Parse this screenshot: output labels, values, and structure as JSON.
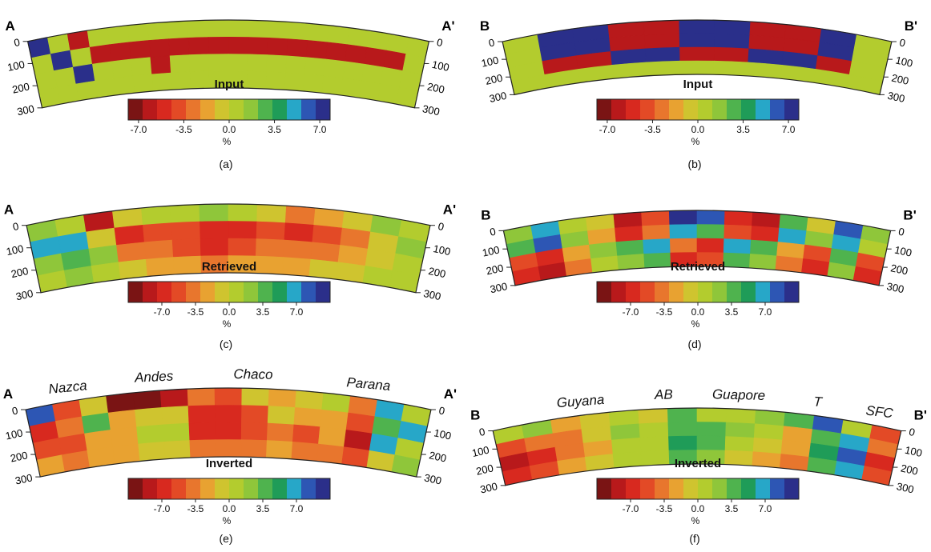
{
  "colorbar": {
    "colors": [
      "#7a1414",
      "#b8191b",
      "#d8291f",
      "#e34a26",
      "#e8762d",
      "#e8a231",
      "#cfc42f",
      "#b3cc2e",
      "#8fc63a",
      "#4fb34e",
      "#1f9c58",
      "#27a7c8",
      "#2d56b4",
      "#2b2f8a"
    ]
  },
  "panels": [
    {
      "id": "a",
      "sub_label": "(a)",
      "title": "Input",
      "end_left": "A",
      "end_right": "A'",
      "depth_ticks": [
        "0",
        "100",
        "200",
        "300"
      ],
      "colorbar_ticks": [
        "-7.0",
        "-3.5",
        "0.0",
        "3.5",
        "7.0"
      ],
      "unit": "%",
      "regions": [],
      "grid": [
        [
          "#2a2f8a",
          "#b3cc2e",
          "#b8191b",
          "#b3cc2e",
          "#b3cc2e",
          "#b3cc2e",
          "#b3cc2e",
          "#b3cc2e",
          "#b3cc2e",
          "#b3cc2e",
          "#b3cc2e",
          "#b3cc2e",
          "#b3cc2e",
          "#b3cc2e",
          "#b3cc2e",
          "#b3cc2e",
          "#b3cc2e",
          "#b3cc2e",
          "#b3cc2e",
          "#b3cc2e"
        ],
        [
          "#b3cc2e",
          "#2a2f8a",
          "#b3cc2e",
          "#b8191b",
          "#b8191b",
          "#b8191b",
          "#b8191b",
          "#b8191b",
          "#b8191b",
          "#b8191b",
          "#b8191b",
          "#b8191b",
          "#b8191b",
          "#b8191b",
          "#b8191b",
          "#b8191b",
          "#b8191b",
          "#b8191b",
          "#b8191b",
          "#b3cc2e"
        ],
        [
          "#b3cc2e",
          "#b3cc2e",
          "#2a2f8a",
          "#b3cc2e",
          "#b3cc2e",
          "#b3cc2e",
          "#b8191b",
          "#b3cc2e",
          "#b3cc2e",
          "#b3cc2e",
          "#b3cc2e",
          "#b3cc2e",
          "#b3cc2e",
          "#b3cc2e",
          "#b3cc2e",
          "#b3cc2e",
          "#b3cc2e",
          "#b3cc2e",
          "#b3cc2e",
          "#b3cc2e"
        ],
        [
          "#b3cc2e",
          "#b3cc2e",
          "#b3cc2e",
          "#b3cc2e",
          "#b3cc2e",
          "#b3cc2e",
          "#b3cc2e",
          "#b3cc2e",
          "#b3cc2e",
          "#b3cc2e",
          "#b3cc2e",
          "#b3cc2e",
          "#b3cc2e",
          "#b3cc2e",
          "#b3cc2e",
          "#b3cc2e",
          "#b3cc2e",
          "#b3cc2e",
          "#b3cc2e",
          "#b3cc2e"
        ]
      ]
    },
    {
      "id": "b",
      "sub_label": "(b)",
      "title": "Input",
      "end_left": "B",
      "end_right": "B'",
      "depth_ticks": [
        "0",
        "100",
        "200",
        "300"
      ],
      "colorbar_ticks": [
        "-7.0",
        "-3.5",
        "0.0",
        "3.5",
        "7.0"
      ],
      "unit": "%",
      "regions": [],
      "grid": [
        [
          "#b3cc2e",
          "#2a2f8a",
          "#2a2f8a",
          "#b8191b",
          "#b8191b",
          "#2a2f8a",
          "#2a2f8a",
          "#b8191b",
          "#b8191b",
          "#2a2f8a",
          "#b3cc2e"
        ],
        [
          "#b3cc2e",
          "#2a2f8a",
          "#2a2f8a",
          "#b8191b",
          "#b8191b",
          "#2a2f8a",
          "#2a2f8a",
          "#b8191b",
          "#b8191b",
          "#2a2f8a",
          "#b3cc2e"
        ],
        [
          "#b3cc2e",
          "#b8191b",
          "#b8191b",
          "#2a2f8a",
          "#2a2f8a",
          "#b8191b",
          "#b8191b",
          "#2a2f8a",
          "#2a2f8a",
          "#b8191b",
          "#b3cc2e"
        ],
        [
          "#b3cc2e",
          "#b3cc2e",
          "#b3cc2e",
          "#b3cc2e",
          "#b3cc2e",
          "#b3cc2e",
          "#b3cc2e",
          "#b3cc2e",
          "#b3cc2e",
          "#b3cc2e",
          "#b3cc2e"
        ]
      ]
    },
    {
      "id": "c",
      "sub_label": "(c)",
      "title": "Retrieved",
      "end_left": "A",
      "end_right": "A'",
      "depth_ticks": [
        "0",
        "100",
        "200",
        "300"
      ],
      "colorbar_ticks": [
        "-7.0",
        "-3.5",
        "0.0",
        "3.5",
        "7.0"
      ],
      "unit": "%",
      "regions": [],
      "grid": [
        [
          "#8fc63a",
          "#b3cc2e",
          "#b8191b",
          "#cfc42f",
          "#b3cc2e",
          "#b3cc2e",
          "#8fc63a",
          "#b3cc2e",
          "#cfc42f",
          "#e8762d",
          "#e8a231",
          "#cfc42f",
          "#8fc63a",
          "#b3cc2e"
        ],
        [
          "#27a7c8",
          "#27a7c8",
          "#cfc42f",
          "#d8291f",
          "#e34a26",
          "#e34a26",
          "#d8291f",
          "#d8291f",
          "#e34a26",
          "#d8291f",
          "#e34a26",
          "#e8762d",
          "#cfc42f",
          "#8fc63a"
        ],
        [
          "#8fc63a",
          "#4fb34e",
          "#8fc63a",
          "#e8762d",
          "#e8762d",
          "#e34a26",
          "#d8291f",
          "#e34a26",
          "#e8762d",
          "#e8762d",
          "#e8762d",
          "#e8a231",
          "#cfc42f",
          "#b3cc2e"
        ],
        [
          "#b3cc2e",
          "#8fc63a",
          "#b3cc2e",
          "#cfc42f",
          "#e8a231",
          "#e8a231",
          "#e8762d",
          "#e8a231",
          "#e8a231",
          "#e8a231",
          "#cfc42f",
          "#cfc42f",
          "#b3cc2e",
          "#b3cc2e"
        ]
      ]
    },
    {
      "id": "d",
      "sub_label": "(d)",
      "title": "Retrieved",
      "end_left": "B",
      "end_right": "B'",
      "depth_ticks": [
        "0",
        "100",
        "200",
        "300"
      ],
      "colorbar_ticks": [
        "-7.0",
        "-3.5",
        "0.0",
        "3.5",
        "7.0"
      ],
      "unit": "%",
      "regions": [],
      "grid": [
        [
          "#8fc63a",
          "#27a7c8",
          "#b3cc2e",
          "#cfc42f",
          "#b8191b",
          "#e34a26",
          "#2a2f8a",
          "#2d56b4",
          "#d8291f",
          "#b8191b",
          "#4fb34e",
          "#cfc42f",
          "#2d56b4",
          "#8fc63a"
        ],
        [
          "#4fb34e",
          "#2d56b4",
          "#8fc63a",
          "#e8a231",
          "#d8291f",
          "#e8762d",
          "#27a7c8",
          "#4fb34e",
          "#e34a26",
          "#d8291f",
          "#27a7c8",
          "#8fc63a",
          "#27a7c8",
          "#b3cc2e"
        ],
        [
          "#e34a26",
          "#d8291f",
          "#e8a231",
          "#8fc63a",
          "#4fb34e",
          "#27a7c8",
          "#e8762d",
          "#d8291f",
          "#27a7c8",
          "#4fb34e",
          "#e8a231",
          "#e34a26",
          "#4fb34e",
          "#e34a26"
        ],
        [
          "#d8291f",
          "#b8191b",
          "#e8762d",
          "#b3cc2e",
          "#8fc63a",
          "#4fb34e",
          "#d8291f",
          "#e34a26",
          "#4fb34e",
          "#8fc63a",
          "#e8762d",
          "#d8291f",
          "#8fc63a",
          "#d8291f"
        ]
      ]
    },
    {
      "id": "e",
      "sub_label": "(e)",
      "title": "Inverted",
      "end_left": "A",
      "end_right": "A'",
      "depth_ticks": [
        "0",
        "100",
        "200",
        "300"
      ],
      "colorbar_ticks": [
        "-7.0",
        "-3.5",
        "0.0",
        "3.5",
        "7.0"
      ],
      "unit": "%",
      "regions": [
        {
          "name": "Nazca",
          "t": 0.11
        },
        {
          "name": "Andes",
          "t": 0.32
        },
        {
          "name": "Chaco",
          "t": 0.56
        },
        {
          "name": "Parana",
          "t": 0.84
        }
      ],
      "grid": [
        [
          "#2d56b4",
          "#e34a26",
          "#cfc42f",
          "#7a1414",
          "#7a1414",
          "#b8191b",
          "#e8762d",
          "#e34a26",
          "#cfc42f",
          "#e8a231",
          "#cfc42f",
          "#b3cc2e",
          "#e8762d",
          "#27a7c8",
          "#b3cc2e"
        ],
        [
          "#d8291f",
          "#e8762d",
          "#4fb34e",
          "#e8a231",
          "#cfc42f",
          "#cfc42f",
          "#d8291f",
          "#d8291f",
          "#e34a26",
          "#cfc42f",
          "#e8a231",
          "#e8a231",
          "#e34a26",
          "#4fb34e",
          "#27a7c8"
        ],
        [
          "#e34a26",
          "#e34a26",
          "#e8a231",
          "#e8a231",
          "#b3cc2e",
          "#b3cc2e",
          "#d8291f",
          "#d8291f",
          "#e34a26",
          "#e8762d",
          "#e34a26",
          "#e8a231",
          "#b8191b",
          "#27a7c8",
          "#b3cc2e"
        ],
        [
          "#e8a231",
          "#e8762d",
          "#e8a231",
          "#e8a231",
          "#cfc42f",
          "#cfc42f",
          "#e8762d",
          "#e8762d",
          "#e8762d",
          "#e8a231",
          "#e8762d",
          "#e8762d",
          "#e34a26",
          "#cfc42f",
          "#8fc63a"
        ]
      ]
    },
    {
      "id": "f",
      "sub_label": "(f)",
      "title": "Inverted",
      "end_left": "B",
      "end_right": "B'",
      "depth_ticks": [
        "0",
        "100",
        "200",
        "300"
      ],
      "colorbar_ticks": [
        "-7.0",
        "-3.5",
        "0.0",
        "3.5",
        "7.0"
      ],
      "unit": "%",
      "regions": [
        {
          "name": "Guyana",
          "t": 0.22
        },
        {
          "name": "AB",
          "t": 0.42
        },
        {
          "name": "Guapore",
          "t": 0.6
        },
        {
          "name": "T",
          "t": 0.79
        },
        {
          "name": "SFC",
          "t": 0.94
        }
      ],
      "grid": [
        [
          "#b3cc2e",
          "#8fc63a",
          "#e8a231",
          "#cfc42f",
          "#b3cc2e",
          "#cfc42f",
          "#4fb34e",
          "#b3cc2e",
          "#b3cc2e",
          "#8fc63a",
          "#4fb34e",
          "#2d56b4",
          "#b3cc2e",
          "#e34a26"
        ],
        [
          "#e34a26",
          "#e8762d",
          "#e8762d",
          "#cfc42f",
          "#8fc63a",
          "#b3cc2e",
          "#4fb34e",
          "#4fb34e",
          "#8fc63a",
          "#b3cc2e",
          "#e8a231",
          "#4fb34e",
          "#27a7c8",
          "#e8762d"
        ],
        [
          "#b8191b",
          "#d8291f",
          "#e8762d",
          "#e8a231",
          "#b3cc2e",
          "#b3cc2e",
          "#1f9c58",
          "#4fb34e",
          "#b3cc2e",
          "#cfc42f",
          "#e8a231",
          "#1f9c58",
          "#2d56b4",
          "#d8291f"
        ],
        [
          "#d8291f",
          "#e34a26",
          "#e8a231",
          "#cfc42f",
          "#b3cc2e",
          "#b3cc2e",
          "#4fb34e",
          "#8fc63a",
          "#cfc42f",
          "#e8a231",
          "#e8762d",
          "#4fb34e",
          "#27a7c8",
          "#e34a26"
        ]
      ]
    }
  ]
}
